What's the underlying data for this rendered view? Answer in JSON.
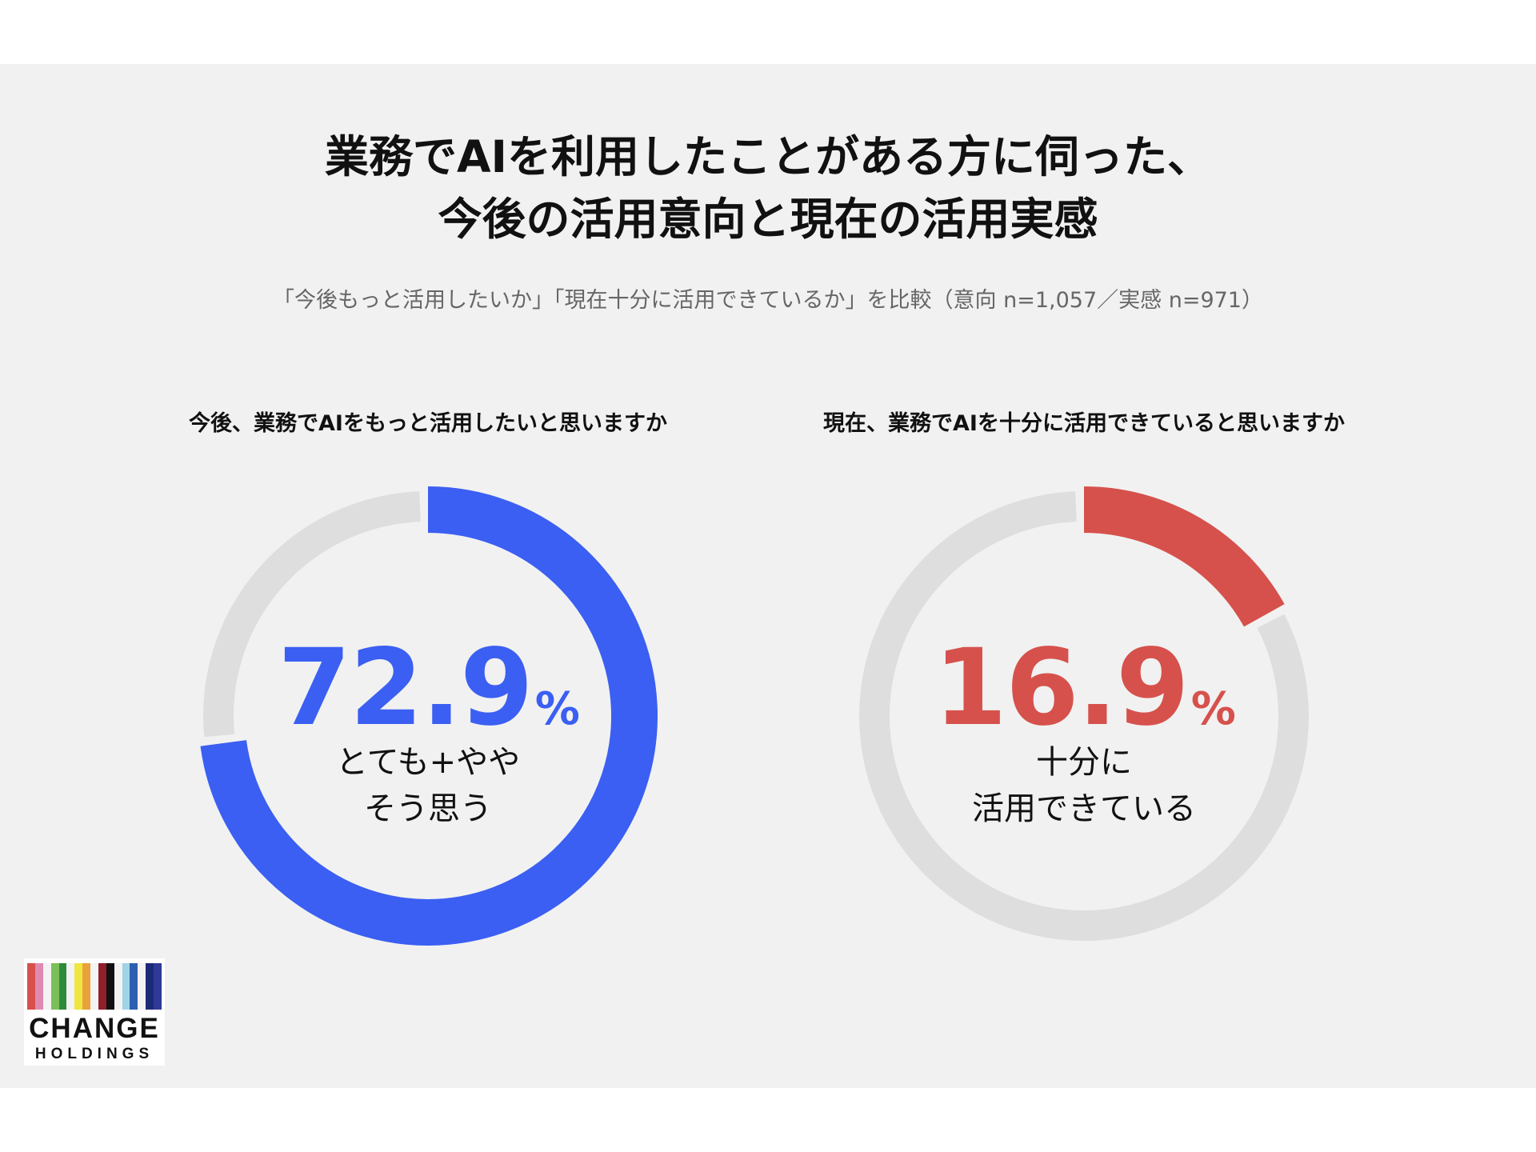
{
  "title_line1": "業務でAIを利用したことがある方に伺った、",
  "title_line2": "今後の活用意向と現在の活用実感",
  "subtitle": "「今後もっと活用したいか」「現在十分に活用できているか」を比較（意向 n=1,057／実感 n=971）",
  "colors": {
    "background": "#f1f1f1",
    "track": "#dedede",
    "intent": "#3b5ff2",
    "actual": "#d6514c"
  },
  "logo": {
    "name_line1": "CHANGE",
    "name_line2": "HOLDINGS",
    "stripe_colors": [
      "#d6514c",
      "#e08ab0",
      "#f3f3f3",
      "#7bbf5a",
      "#2e8b3a",
      "#f3f3f3",
      "#f0e640",
      "#e9a13b",
      "#f3f3f3",
      "#8f1f2a",
      "#111111",
      "#f3f3f3",
      "#9fd3e8",
      "#2d5fb0",
      "#f3f3f3",
      "#1c2a7a",
      "#2e3a96"
    ]
  },
  "chart_data": [
    {
      "type": "pie",
      "title": "今後、業務でAIをもっと活用したいと思いますか",
      "values": [
        72.9,
        27.1
      ],
      "labels": [
        "とても+ややそう思う",
        ""
      ],
      "highlight": {
        "value": "72.9",
        "unit": "%",
        "caption_line1": "とても+やや",
        "caption_line2": "そう思う"
      }
    },
    {
      "type": "pie",
      "title": "現在、業務でAIを十分に活用できていると思いますか",
      "values": [
        16.9,
        83.1
      ],
      "labels": [
        "十分に活用できている",
        ""
      ],
      "highlight": {
        "value": "16.9",
        "unit": "%",
        "caption_line1": "十分に",
        "caption_line2": "活用できている"
      }
    }
  ]
}
